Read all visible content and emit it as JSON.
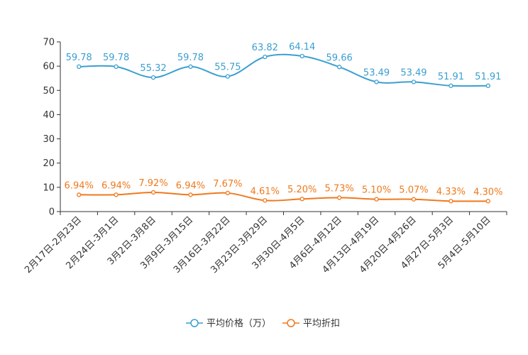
{
  "chart_data": {
    "type": "line",
    "title": "",
    "xlabel": "",
    "ylabel": "",
    "ylim": [
      0,
      70
    ],
    "yticks": [
      "0",
      "10",
      "20",
      "30",
      "40",
      "50",
      "60",
      "70"
    ],
    "grid": false,
    "legend_position": "bottom",
    "categories": [
      "2月17日-2月23日",
      "2月24日-3月1日",
      "3月2日-3月8日",
      "3月9日-3月15日",
      "3月16日-3月22日",
      "3月23日-3月29日",
      "3月30日-4月5日",
      "4月6日-4月12日",
      "4月13日-4月19日",
      "4月20日-4月26日",
      "4月27日-5月3日",
      "5月4日-5月10日"
    ],
    "series": [
      {
        "name": "平均价格（万）",
        "color": "#3a9fd1",
        "values": [
          59.78,
          59.78,
          55.32,
          59.78,
          55.75,
          63.82,
          64.14,
          59.66,
          53.49,
          53.49,
          51.91,
          51.91
        ],
        "labels": [
          "59.78",
          "59.78",
          "55.32",
          "59.78",
          "55.75",
          "63.82",
          "64.14",
          "59.66",
          "53.49",
          "53.49",
          "51.91",
          "51.91"
        ]
      },
      {
        "name": "平均折扣",
        "color": "#f0791c",
        "values": [
          6.94,
          6.94,
          7.92,
          6.94,
          7.67,
          4.61,
          5.2,
          5.73,
          5.1,
          5.07,
          4.33,
          4.3
        ],
        "labels": [
          "6.94%",
          "6.94%",
          "7.92%",
          "6.94%",
          "7.67%",
          "4.61%",
          "5.20%",
          "5.73%",
          "5.10%",
          "5.07%",
          "4.33%",
          "4.30%"
        ]
      }
    ]
  }
}
